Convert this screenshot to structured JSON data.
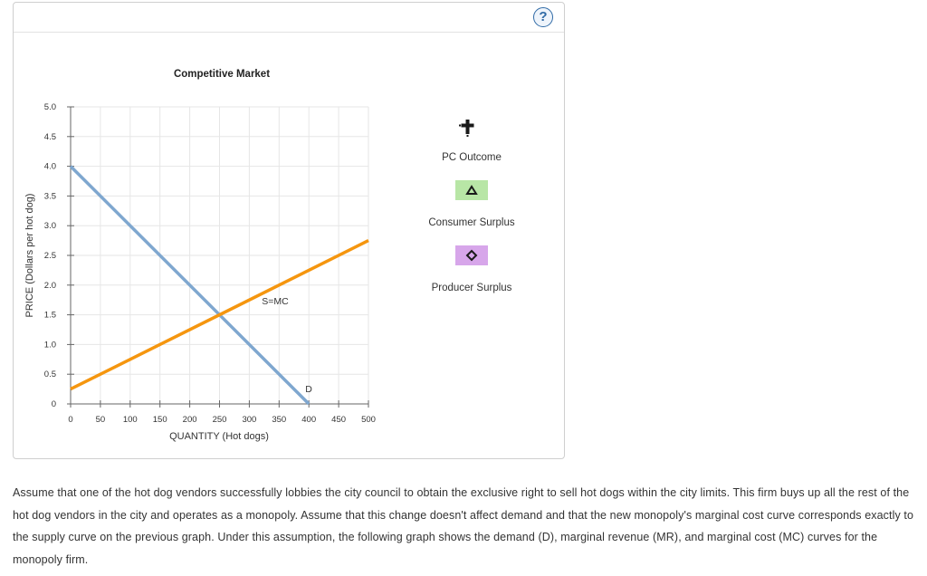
{
  "help": {
    "label": "?"
  },
  "chart_data": {
    "type": "line",
    "title": "Competitive Market",
    "xlabel": "QUANTITY (Hot dogs)",
    "ylabel": "PRICE (Dollars per hot dog)",
    "xlim": [
      0,
      500
    ],
    "ylim": [
      0,
      5
    ],
    "xticks": [
      "0",
      "50",
      "100",
      "150",
      "200",
      "250",
      "300",
      "350",
      "400",
      "450",
      "500"
    ],
    "yticks": [
      "0",
      "0.5",
      "1.0",
      "1.5",
      "2.0",
      "2.5",
      "3.0",
      "3.5",
      "4.0",
      "4.5",
      "5.0"
    ],
    "grid": true,
    "series": [
      {
        "name": "D",
        "color": "#7fa7cf",
        "x": [
          0,
          400
        ],
        "y": [
          4.0,
          0
        ]
      },
      {
        "name": "S=MC",
        "color": "#f5960f",
        "x": [
          0,
          500
        ],
        "y": [
          0.25,
          2.75
        ]
      }
    ]
  },
  "tools": {
    "pc_outcome": {
      "label": "PC Outcome",
      "icon": "plus-marker-icon"
    },
    "consumer_surplus": {
      "label": "Consumer Surplus",
      "icon": "triangle-icon",
      "color": "#b8e6a6"
    },
    "producer_surplus": {
      "label": "Producer Surplus",
      "icon": "diamond-icon",
      "color": "#d7a6ea"
    }
  },
  "question": {
    "text": "Assume that one of the hot dog vendors successfully lobbies the city council to obtain the exclusive right to sell hot dogs within the city limits. This firm buys up all the rest of the hot dog vendors in the city and operates as a monopoly. Assume that this change doesn't affect demand and that the new monopoly's marginal cost curve corresponds exactly to the supply curve on the previous graph. Under this assumption, the following graph shows the demand (D), marginal revenue (MR), and marginal cost (MC) curves for the monopoly firm."
  }
}
